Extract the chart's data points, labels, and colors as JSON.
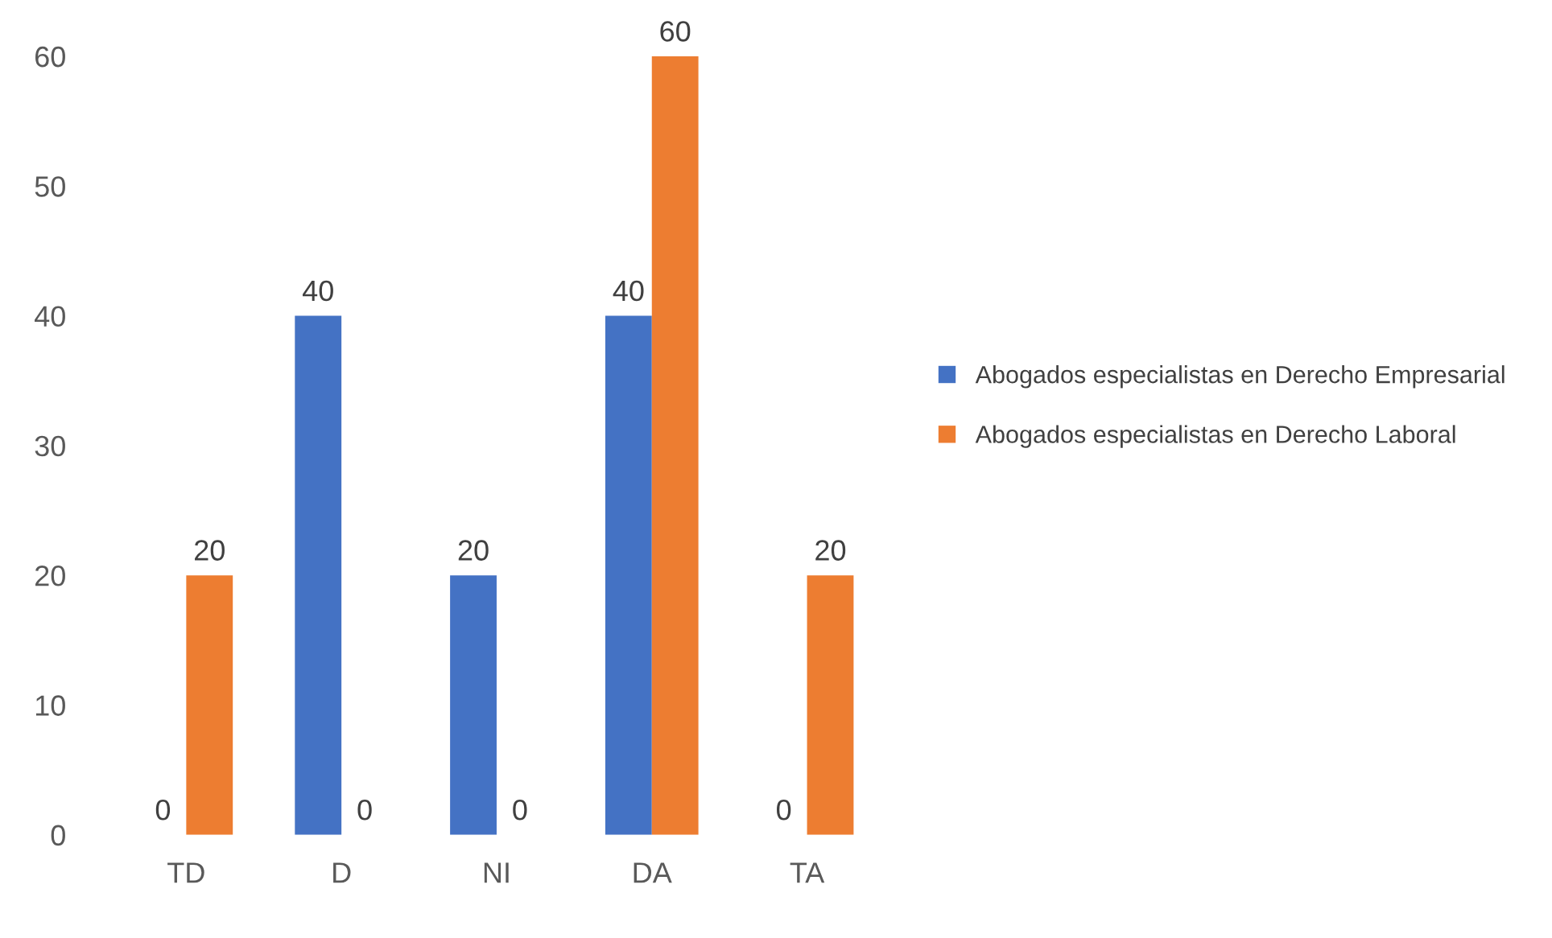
{
  "chart_data": {
    "type": "bar",
    "categories": [
      "TD",
      "D",
      "NI",
      "DA",
      "TA"
    ],
    "series": [
      {
        "name": "Abogados especialistas en Derecho Empresarial",
        "color": "#4472c4",
        "values": [
          0,
          40,
          20,
          40,
          0
        ]
      },
      {
        "name": "Abogados especialistas en Derecho Laboral",
        "color": "#ed7d31",
        "values": [
          20,
          0,
          0,
          60,
          20
        ]
      }
    ],
    "ylim": [
      0,
      60
    ],
    "yticks": [
      0,
      10,
      20,
      30,
      40,
      50,
      60
    ],
    "data_labels": true,
    "grid": false,
    "legend": "right"
  }
}
